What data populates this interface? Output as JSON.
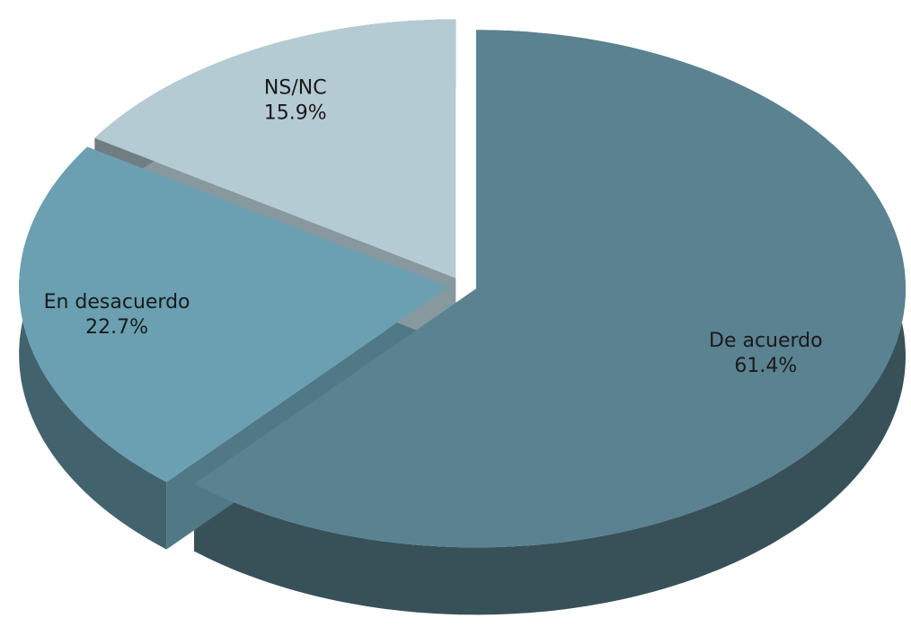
{
  "chart_data": {
    "type": "pie",
    "categories": [
      "De acuerdo",
      "En desacuerdo",
      "NS/NC"
    ],
    "values": [
      61.4,
      22.7,
      15.9
    ],
    "value_labels": [
      "61.4%",
      "22.7%",
      "15.9%"
    ],
    "colors": [
      "#5a8290",
      "#6aa0b1",
      "#b5cbd4"
    ]
  }
}
